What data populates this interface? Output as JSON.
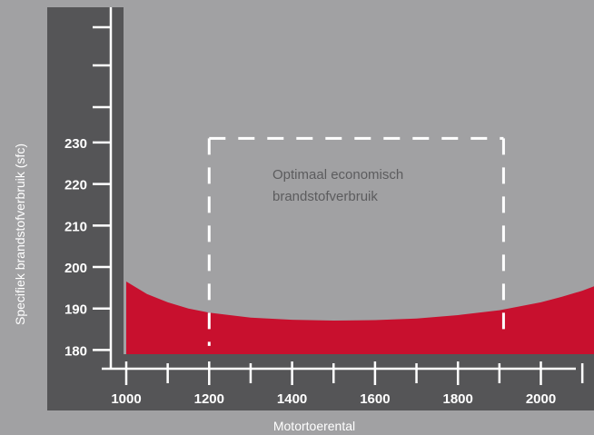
{
  "chart_data": {
    "type": "area",
    "xlabel": "Motortoerental",
    "ylabel": "Specifiek brandstofverbruik (sfc)",
    "x_ticks": [
      1000,
      1200,
      1400,
      1600,
      1800,
      2000
    ],
    "y_ticks": [
      180,
      190,
      200,
      210,
      220,
      230
    ],
    "xlim": [
      950,
      2150
    ],
    "ylim": [
      179,
      260
    ],
    "grid": false,
    "series": [
      {
        "color": "#c8102e",
        "baseline": 179,
        "x": [
          1000,
          1050,
          1100,
          1150,
          1200,
          1300,
          1400,
          1500,
          1600,
          1700,
          1800,
          1900,
          2000,
          2050,
          2100,
          2150
        ],
        "y": [
          196.5,
          193.5,
          191.5,
          190.0,
          189.0,
          187.8,
          187.3,
          187.1,
          187.2,
          187.6,
          188.4,
          189.6,
          191.5,
          192.8,
          194.3,
          196.2
        ]
      }
    ],
    "annotations": [
      {
        "text_lines": [
          "Optimaal economisch",
          "brandstofverbruik"
        ],
        "box_x": [
          1200,
          1910
        ],
        "box_y": [
          181,
          231
        ]
      }
    ],
    "colors": {
      "background": "#a1a1a3",
      "axis_panel": "#555557",
      "axis_line": "#ffffff",
      "box": "#ffffff",
      "annotation_text": "#5c5c5e"
    }
  }
}
